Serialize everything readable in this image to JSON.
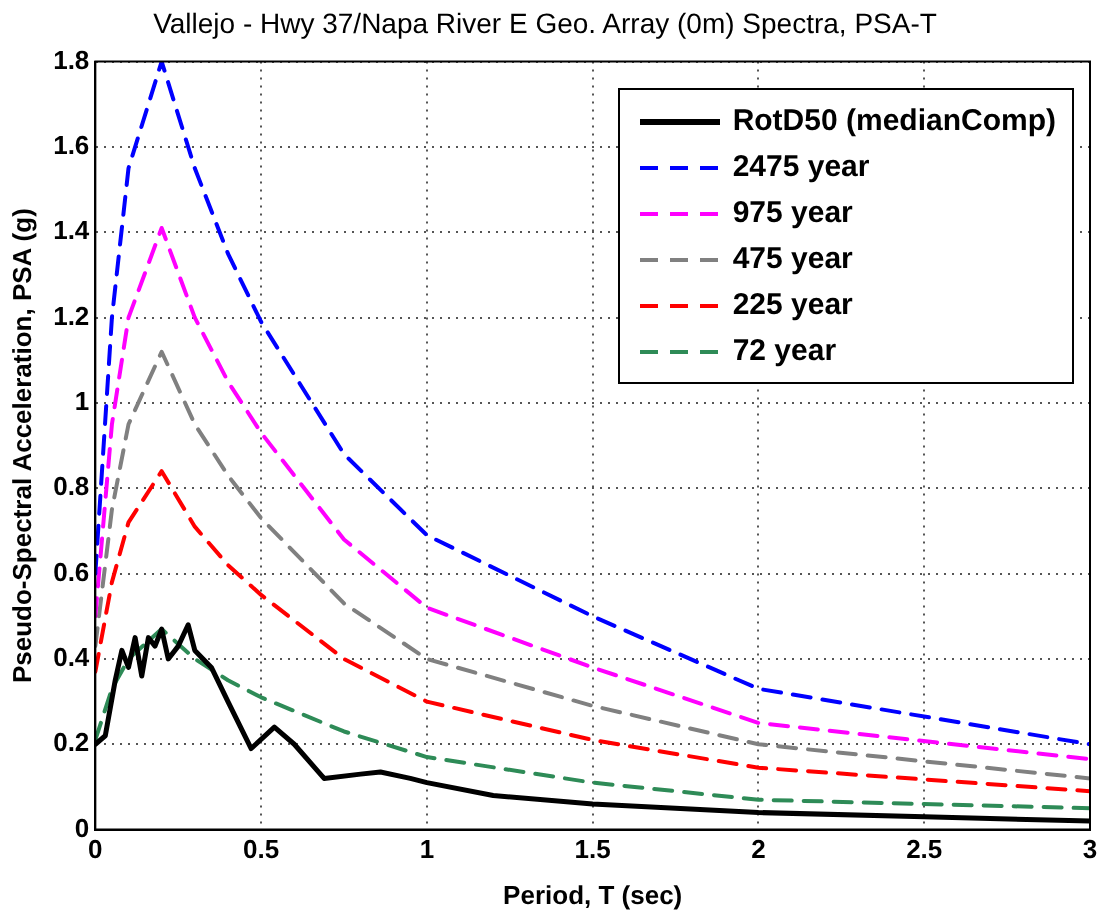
{
  "chart_data": {
    "type": "line",
    "title": "Vallejo - Hwy 37/Napa River E Geo. Array (0m) Spectra, PSA-T",
    "xlabel": "Period, T (sec)",
    "ylabel": "Pseudo-Spectral Acceleration, PSA (g)",
    "xlim": [
      0,
      3
    ],
    "xticks": [
      0,
      0.5,
      1,
      1.5,
      2,
      2.5,
      3
    ],
    "ylim": [
      0,
      1.8
    ],
    "yticks": [
      0,
      0.2,
      0.4,
      0.6,
      0.8,
      1,
      1.2,
      1.4,
      1.6,
      1.8
    ],
    "grid": true,
    "legend": "top right",
    "marker": "none",
    "series": [
      {
        "name": "RotD50 (medianComp)",
        "color": "#000000",
        "line_style": "solid",
        "x": [
          0,
          0.03,
          0.06,
          0.08,
          0.1,
          0.12,
          0.14,
          0.16,
          0.18,
          0.2,
          0.22,
          0.25,
          0.28,
          0.3,
          0.35,
          0.4,
          0.47,
          0.54,
          0.6,
          0.69,
          0.8,
          0.86,
          0.95,
          1,
          1.2,
          1.5,
          2,
          2.5,
          3
        ],
        "values": [
          0.2,
          0.22,
          0.35,
          0.42,
          0.38,
          0.45,
          0.36,
          0.45,
          0.43,
          0.47,
          0.4,
          0.43,
          0.48,
          0.42,
          0.38,
          0.3,
          0.19,
          0.24,
          0.2,
          0.12,
          0.13,
          0.135,
          0.12,
          0.11,
          0.08,
          0.06,
          0.04,
          0.03,
          0.02
        ]
      },
      {
        "name": "2475 year",
        "color": "#0000ff",
        "line_style": "dashed",
        "x": [
          0,
          0.05,
          0.1,
          0.2,
          0.3,
          0.4,
          0.5,
          0.75,
          1,
          1.5,
          2,
          3
        ],
        "values": [
          0.6,
          1.2,
          1.55,
          1.8,
          1.55,
          1.35,
          1.19,
          0.88,
          0.69,
          0.5,
          0.33,
          0.2
        ]
      },
      {
        "name": "975 year",
        "color": "#ff00ff",
        "line_style": "dashed",
        "x": [
          0,
          0.05,
          0.1,
          0.2,
          0.3,
          0.4,
          0.5,
          0.75,
          1,
          1.5,
          2,
          3
        ],
        "values": [
          0.5,
          0.95,
          1.2,
          1.41,
          1.2,
          1.05,
          0.93,
          0.68,
          0.52,
          0.38,
          0.25,
          0.165
        ]
      },
      {
        "name": "475 year",
        "color": "#808080",
        "line_style": "dashed",
        "x": [
          0,
          0.05,
          0.1,
          0.2,
          0.3,
          0.4,
          0.5,
          0.75,
          1,
          1.5,
          2,
          3
        ],
        "values": [
          0.43,
          0.75,
          0.95,
          1.12,
          0.95,
          0.83,
          0.73,
          0.53,
          0.4,
          0.29,
          0.2,
          0.12
        ]
      },
      {
        "name": "225 year",
        "color": "#ff0000",
        "line_style": "dashed",
        "x": [
          0,
          0.05,
          0.1,
          0.2,
          0.3,
          0.4,
          0.5,
          0.75,
          1,
          1.5,
          2,
          3
        ],
        "values": [
          0.37,
          0.58,
          0.72,
          0.84,
          0.71,
          0.62,
          0.55,
          0.4,
          0.3,
          0.21,
          0.145,
          0.09
        ]
      },
      {
        "name": "72 year",
        "color": "#2e8b57",
        "line_style": "dashed",
        "x": [
          0,
          0.05,
          0.1,
          0.2,
          0.3,
          0.4,
          0.5,
          0.75,
          1,
          1.5,
          2,
          3
        ],
        "values": [
          0.21,
          0.33,
          0.4,
          0.47,
          0.4,
          0.35,
          0.31,
          0.23,
          0.17,
          0.11,
          0.07,
          0.05
        ]
      }
    ]
  }
}
